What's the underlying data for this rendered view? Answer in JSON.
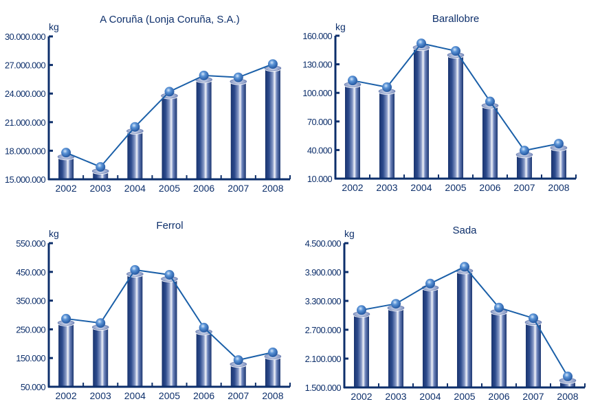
{
  "chart_data": [
    {
      "type": "bar",
      "title": "A Coruña (Lonja Coruña, S.A.)",
      "ylabel": "kg",
      "xlabel": "",
      "categories": [
        "2002",
        "2003",
        "2004",
        "2005",
        "2006",
        "2007",
        "2008"
      ],
      "values": [
        17800000,
        16300000,
        20500000,
        24200000,
        25900000,
        25700000,
        27100000
      ],
      "ylim": [
        15000000,
        30000000
      ],
      "yticks": [
        15000000,
        18000000,
        21000000,
        24000000,
        27000000,
        30000000
      ],
      "ytick_labels": [
        "15.000.000",
        "18.000.000",
        "21.000.000",
        "24.000.000",
        "27.000.000",
        "30.000.000"
      ],
      "overlay": "line-with-markers",
      "grid": false,
      "legend": "none"
    },
    {
      "type": "bar",
      "title": "Barallobre",
      "ylabel": "kg",
      "xlabel": "",
      "categories": [
        "2002",
        "2003",
        "2004",
        "2005",
        "2006",
        "2007",
        "2008"
      ],
      "values": [
        113000,
        106000,
        152000,
        144000,
        91000,
        39500,
        46700
      ],
      "ylim": [
        10000,
        160000
      ],
      "yticks": [
        10000,
        40000,
        70000,
        100000,
        130000,
        160000
      ],
      "ytick_labels": [
        "10.000",
        "40.000",
        "70.000",
        "100.000",
        "130.000",
        "160.000"
      ],
      "overlay": "line-with-markers",
      "grid": false,
      "legend": "none"
    },
    {
      "type": "bar",
      "title": "Ferrol",
      "ylabel": "kg",
      "xlabel": "",
      "categories": [
        "2002",
        "2003",
        "2004",
        "2005",
        "2006",
        "2007",
        "2008"
      ],
      "values": [
        287000,
        272000,
        457000,
        440000,
        256000,
        143000,
        170000
      ],
      "ylim": [
        50000,
        550000
      ],
      "yticks": [
        50000,
        150000,
        250000,
        350000,
        450000,
        550000
      ],
      "ytick_labels": [
        "50.000",
        "150.000",
        "250.000",
        "350.000",
        "450.000",
        "550.000"
      ],
      "overlay": "line-with-markers",
      "grid": false,
      "legend": "none"
    },
    {
      "type": "bar",
      "title": "Sada",
      "ylabel": "kg",
      "xlabel": "",
      "categories": [
        "2002",
        "2003",
        "2004",
        "2005",
        "2006",
        "2007",
        "2008"
      ],
      "values": [
        3110000,
        3240000,
        3660000,
        4010000,
        3160000,
        2940000,
        1730000
      ],
      "ylim": [
        1500000,
        4500000
      ],
      "yticks": [
        1500000,
        2100000,
        2700000,
        3300000,
        3900000,
        4500000
      ],
      "ytick_labels": [
        "1.500.000",
        "2.100.000",
        "2.700.000",
        "3.300.000",
        "3.900.000",
        "4.500.000"
      ],
      "overlay": "line-with-markers",
      "grid": false,
      "legend": "none"
    }
  ],
  "colors": {
    "axis": "#0d2f6b",
    "line": "#1a5fa8",
    "bar_dark": "#1d3b7a",
    "bar_light": "#eef1f8",
    "marker": "#2f6fc0",
    "marker_highlight": "#cfe2f7"
  }
}
